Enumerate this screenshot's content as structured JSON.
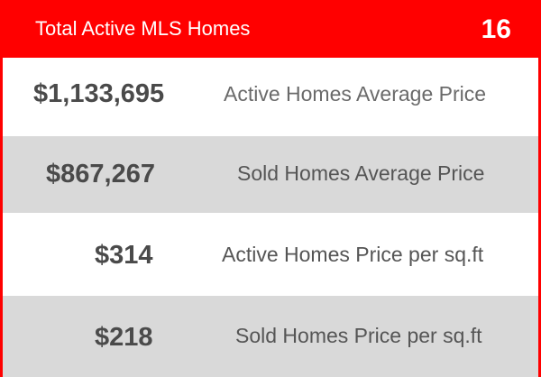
{
  "header": {
    "title": "Total Active MLS Homes",
    "count": "16"
  },
  "stats": [
    {
      "value": "$1,133,695",
      "label": "Active Homes Average Price"
    },
    {
      "value": "$867,267",
      "label": "Sold Homes Average Price"
    },
    {
      "value": "$314",
      "label": "Active Homes Price per sq.ft"
    },
    {
      "value": "$218",
      "label": "Sold Homes Price per sq.ft"
    }
  ],
  "colors": {
    "accent": "#ff0000",
    "row_alt": "#d9d9d9",
    "text": "#4a4a4a"
  }
}
